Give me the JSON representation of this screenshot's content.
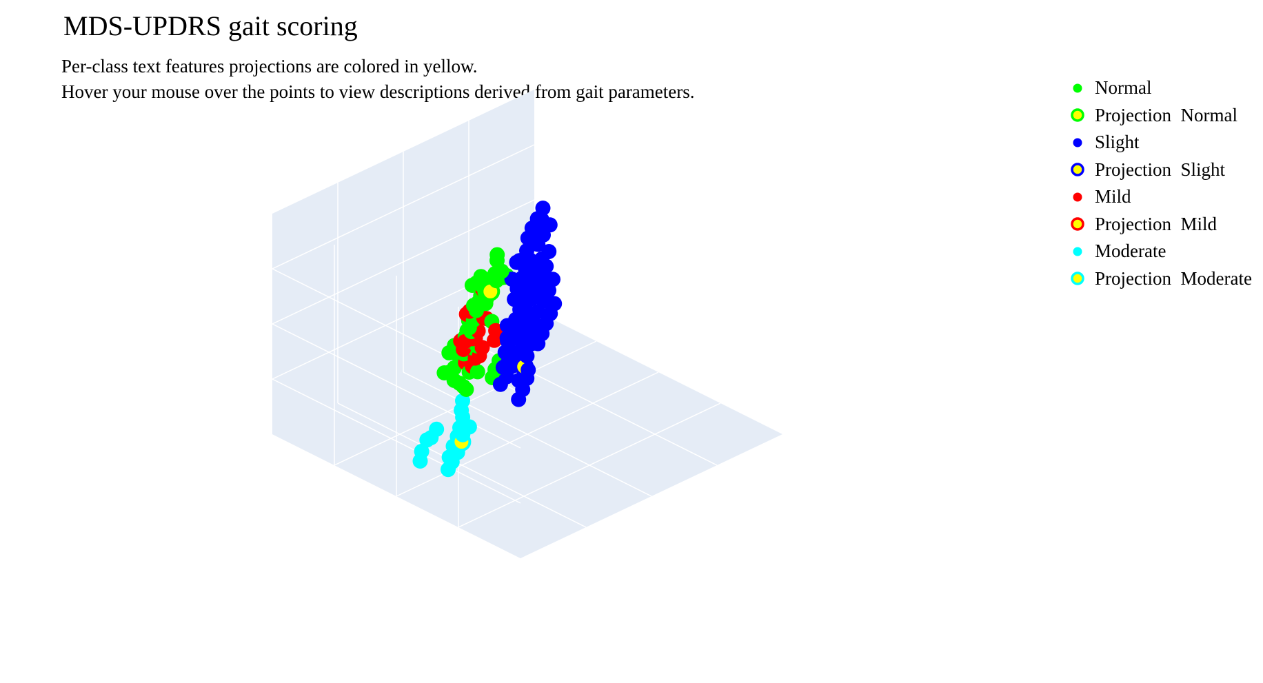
{
  "title": "MDS-UPDRS gait scoring",
  "subtitle": [
    "Per-class text features projections are colored in yellow.",
    "Hover your mouse over the points to view descriptions derived from gait parameters."
  ],
  "colors": {
    "normal": "#00ff00",
    "slight": "#0000ff",
    "mild": "#ff0000",
    "moderate": "#00ffff",
    "projection_fill": "#ffff00",
    "scene_bg": "#e5ecf6",
    "grid": "#ffffff"
  },
  "legend": [
    {
      "label": "Normal",
      "color": "#00ff00",
      "projection": false
    },
    {
      "label": "Projection  Normal",
      "color": "#00ff00",
      "projection": true
    },
    {
      "label": "Slight",
      "color": "#0000ff",
      "projection": false
    },
    {
      "label": "Projection  Slight",
      "color": "#0000ff",
      "projection": true
    },
    {
      "label": "Mild",
      "color": "#ff0000",
      "projection": false
    },
    {
      "label": "Projection  Mild",
      "color": "#ff0000",
      "projection": true
    },
    {
      "label": "Moderate",
      "color": "#00ffff",
      "projection": false
    },
    {
      "label": "Projection  Moderate",
      "color": "#00ffff",
      "projection": true
    }
  ],
  "chart_data": {
    "type": "scatter",
    "dimension": "3d",
    "title": "MDS-UPDRS gait scoring",
    "axis_ranges": {
      "x": [
        -10,
        10
      ],
      "y": [
        -10,
        10
      ],
      "z": [
        -10,
        10
      ]
    },
    "grid": true,
    "legend_position": "right",
    "series": [
      {
        "name": "Normal",
        "color": "#00ff00",
        "marker": "circle",
        "points": [
          [
            2.0,
            5.4,
            0.5
          ],
          [
            2.6,
            5.2,
            1.0
          ],
          [
            3.1,
            5.7,
            0.3
          ],
          [
            3.9,
            5.9,
            0.0
          ],
          [
            4.5,
            6.2,
            -0.3
          ],
          [
            1.2,
            5.0,
            0.8
          ],
          [
            1.8,
            4.6,
            0.6
          ],
          [
            2.5,
            4.2,
            0.9
          ],
          [
            2.9,
            3.8,
            0.7
          ],
          [
            3.5,
            3.9,
            0.2
          ],
          [
            4.2,
            4.1,
            -0.1
          ],
          [
            2.2,
            3.5,
            1.1
          ],
          [
            2.8,
            3.2,
            0.4
          ],
          [
            3.3,
            3.5,
            0.5
          ],
          [
            3.8,
            3.3,
            0.1
          ],
          [
            4.5,
            3.1,
            -0.4
          ],
          [
            5.0,
            2.8,
            -0.6
          ],
          [
            5.6,
            2.5,
            -0.9
          ],
          [
            6.2,
            2.3,
            -1.1
          ],
          [
            6.8,
            2.6,
            -1.3
          ],
          [
            7.5,
            2.5,
            -1.6
          ],
          [
            5.3,
            1.8,
            -0.7
          ],
          [
            4.8,
            2.2,
            -0.2
          ],
          [
            4.2,
            2.5,
            0.3
          ],
          [
            3.6,
            2.7,
            0.6
          ],
          [
            3.0,
            2.4,
            1.0
          ],
          [
            2.4,
            2.1,
            1.4
          ],
          [
            1.9,
            2.6,
            1.3
          ],
          [
            2.6,
            1.6,
            1.2
          ],
          [
            3.3,
            1.9,
            0.8
          ],
          [
            4.1,
            1.5,
            0.2
          ],
          [
            4.9,
            1.2,
            -0.3
          ],
          [
            5.7,
            1.0,
            -0.9
          ],
          [
            6.4,
            1.4,
            -1.2
          ],
          [
            7.0,
            0.8,
            -1.5
          ],
          [
            7.3,
            0.0,
            -1.8
          ],
          [
            6.8,
            -0.6,
            -1.7
          ],
          [
            6.3,
            -1.3,
            -1.5
          ],
          [
            5.8,
            -2.0,
            -1.2
          ],
          [
            3.6,
            -0.5,
            0.6
          ],
          [
            3.0,
            -0.8,
            0.9
          ],
          [
            4.4,
            -0.2,
            0.2
          ],
          [
            0.3,
            3.2,
            2.0
          ],
          [
            -0.1,
            2.9,
            2.2
          ],
          [
            -0.5,
            2.6,
            2.4
          ],
          [
            -0.9,
            2.4,
            2.6
          ],
          [
            1.4,
            -3.0,
            0.8
          ],
          [
            1.9,
            -3.4,
            0.6
          ],
          [
            2.3,
            -3.8,
            0.4
          ],
          [
            9.0,
            2.2,
            -2.8
          ],
          [
            8.2,
            1.5,
            -2.3
          ],
          [
            0.8,
            5.3,
            1.6
          ],
          [
            0.6,
            5.6,
            1.8
          ],
          [
            3.8,
            -2.2,
            0.0
          ],
          [
            1.2,
            0.0,
            1.6
          ],
          [
            5.2,
            -1.0,
            -0.8
          ]
        ]
      },
      {
        "name": "Projection  Normal",
        "color": "#00ff00",
        "marker": "circle-open",
        "points": [
          [
            1.5,
            3.0,
            1.4
          ]
        ]
      },
      {
        "name": "Slight",
        "color": "#0000ff",
        "marker": "circle",
        "points": [
          [
            -4.5,
            6.0,
            3.5
          ],
          [
            -3.8,
            5.6,
            3.2
          ],
          [
            -3.2,
            5.2,
            3.0
          ],
          [
            -2.6,
            4.8,
            2.7
          ],
          [
            -4.0,
            4.5,
            3.4
          ],
          [
            -3.3,
            4.1,
            3.1
          ],
          [
            -2.6,
            3.6,
            2.8
          ],
          [
            -1.9,
            3.2,
            2.5
          ],
          [
            -5.8,
            3.3,
            4.3
          ],
          [
            -5.0,
            3.0,
            4.0
          ],
          [
            -4.4,
            2.6,
            3.8
          ],
          [
            -0.6,
            4.4,
            1.5
          ],
          [
            -1.2,
            4.0,
            1.9
          ],
          [
            -3.4,
            2.0,
            3.4
          ],
          [
            -2.8,
            1.6,
            3.1
          ],
          [
            -2.2,
            1.3,
            2.8
          ],
          [
            -1.5,
            1.0,
            2.4
          ],
          [
            -0.9,
            0.6,
            2.0
          ],
          [
            -4.8,
            1.0,
            3.9
          ],
          [
            -4.1,
            0.6,
            3.6
          ],
          [
            -3.5,
            0.2,
            3.3
          ],
          [
            -2.9,
            -0.2,
            3.0
          ],
          [
            -2.3,
            -0.6,
            2.7
          ],
          [
            -1.7,
            -1.0,
            2.4
          ],
          [
            -1.1,
            -1.4,
            2.1
          ],
          [
            -0.5,
            -1.8,
            1.8
          ],
          [
            0.2,
            -2.2,
            1.4
          ],
          [
            -5.6,
            -0.4,
            4.4
          ],
          [
            -5.0,
            -0.9,
            4.1
          ],
          [
            -4.3,
            -1.3,
            3.8
          ],
          [
            -3.6,
            -1.7,
            3.5
          ],
          [
            -2.9,
            -2.1,
            3.2
          ],
          [
            -2.2,
            -2.5,
            2.9
          ],
          [
            -1.5,
            -2.9,
            2.6
          ],
          [
            -0.8,
            -3.3,
            2.3
          ],
          [
            -0.1,
            -3.7,
            1.9
          ],
          [
            -6.4,
            -2.2,
            4.7
          ],
          [
            -5.8,
            -2.7,
            4.4
          ],
          [
            -5.2,
            -3.2,
            4.2
          ],
          [
            -4.5,
            -3.6,
            3.9
          ],
          [
            -3.9,
            -4.1,
            3.6
          ],
          [
            -3.2,
            -4.5,
            3.3
          ],
          [
            -2.5,
            -5.0,
            3.0
          ],
          [
            -1.8,
            -5.4,
            2.7
          ],
          [
            -1.1,
            -5.8,
            2.4
          ],
          [
            -0.4,
            -6.2,
            2.1
          ],
          [
            -4.2,
            -5.2,
            3.8
          ],
          [
            -3.6,
            -5.8,
            3.5
          ],
          [
            -3.0,
            -6.4,
            3.2
          ],
          [
            -2.4,
            -7.0,
            2.9
          ],
          [
            -1.8,
            -7.6,
            2.6
          ],
          [
            -2.8,
            -8.2,
            3.0
          ],
          [
            -2.2,
            -8.7,
            2.7
          ],
          [
            -1.6,
            -9.1,
            2.4
          ],
          [
            -6.8,
            -4.8,
            5.0
          ],
          [
            -6.2,
            -5.2,
            4.7
          ],
          [
            -5.6,
            -5.6,
            4.4
          ],
          [
            -5.0,
            -6.0,
            4.1
          ],
          [
            -4.4,
            -6.4,
            3.8
          ],
          [
            -6.0,
            0.6,
            4.6
          ],
          [
            0.4,
            -0.6,
            1.2
          ],
          [
            0.6,
            -1.5,
            1.0
          ],
          [
            -0.3,
            -4.8,
            1.9
          ],
          [
            -1.0,
            2.2,
            2.3
          ],
          [
            -3.8,
            3.2,
            3.5
          ],
          [
            -4.6,
            4.8,
            3.7
          ],
          [
            -2.0,
            -3.8,
            2.6
          ],
          [
            -1.2,
            -4.6,
            2.3
          ],
          [
            -0.6,
            -5.2,
            2.0
          ],
          [
            -5.3,
            -1.9,
            4.3
          ],
          [
            -4.8,
            -2.4,
            4.0
          ],
          [
            0.9,
            -4.0,
            1.0
          ],
          [
            1.3,
            -5.2,
            0.8
          ],
          [
            -3.0,
            -7.6,
            3.1
          ],
          [
            -3.5,
            -3.0,
            3.6
          ],
          [
            -2.6,
            -3.4,
            3.2
          ]
        ]
      },
      {
        "name": "Projection  Slight",
        "color": "#0000ff",
        "marker": "circle-open",
        "points": [
          [
            -2.4,
            -6.8,
            2.8
          ]
        ]
      },
      {
        "name": "Mild",
        "color": "#ff0000",
        "marker": "circle",
        "points": [
          [
            2.8,
            4.6,
            0.8
          ],
          [
            2.4,
            4.0,
            1.2
          ],
          [
            2.0,
            3.4,
            1.6
          ],
          [
            5.0,
            4.3,
            -0.6
          ],
          [
            4.6,
            3.5,
            -0.3
          ],
          [
            6.1,
            2.6,
            -1.4
          ],
          [
            6.5,
            2.3,
            -1.7
          ],
          [
            3.0,
            0.6,
            0.8
          ],
          [
            3.5,
            0.4,
            0.5
          ],
          [
            4.0,
            0.8,
            0.2
          ],
          [
            5.2,
            -0.3,
            -0.5
          ],
          [
            2.5,
            -1.3,
            1.0
          ],
          [
            3.0,
            -1.6,
            0.7
          ],
          [
            3.6,
            -1.3,
            0.4
          ],
          [
            4.1,
            -1.6,
            0.1
          ],
          [
            0.9,
            -1.0,
            1.6
          ],
          [
            1.2,
            -1.6,
            1.4
          ],
          [
            5.6,
            4.6,
            -1.0
          ],
          [
            1.7,
            0.6,
            1.5
          ],
          [
            2.1,
            1.0,
            1.3
          ],
          [
            6.8,
            3.3,
            -1.8
          ]
        ]
      },
      {
        "name": "Projection  Mild",
        "color": "#ff0000",
        "marker": "circle-open",
        "points": [
          [
            1.8,
            3.3,
            1.5
          ]
        ]
      },
      {
        "name": "Moderate",
        "color": "#00ffff",
        "marker": "circle",
        "points": [
          [
            5.8,
            -3.2,
            -0.9
          ],
          [
            5.9,
            -4.0,
            -0.9
          ],
          [
            5.7,
            -4.8,
            -0.8
          ],
          [
            5.5,
            -5.6,
            -0.7
          ],
          [
            4.9,
            -6.3,
            -0.5
          ],
          [
            5.6,
            -6.5,
            -0.7
          ],
          [
            6.2,
            -6.2,
            -0.9
          ],
          [
            6.7,
            -6.7,
            -1.1
          ],
          [
            5.7,
            -7.2,
            -0.6
          ],
          [
            6.3,
            -7.4,
            -0.8
          ],
          [
            6.9,
            -7.6,
            -1.1
          ],
          [
            5.9,
            -8.0,
            -0.6
          ],
          [
            6.6,
            -8.3,
            -0.9
          ],
          [
            7.2,
            -7.3,
            -1.3
          ],
          [
            7.0,
            -8.7,
            -1.0
          ],
          [
            9.4,
            -2.8,
            -2.6
          ],
          [
            10.1,
            -3.0,
            -2.9
          ],
          [
            10.7,
            -2.7,
            -3.2
          ],
          [
            11.2,
            -3.4,
            -3.3
          ],
          [
            11.5,
            -4.0,
            -3.5
          ],
          [
            6.2,
            -5.3,
            -1.1
          ]
        ]
      },
      {
        "name": "Projection  Moderate",
        "color": "#00ffff",
        "marker": "circle-open",
        "points": [
          [
            5.6,
            -7.2,
            -0.6
          ]
        ]
      }
    ]
  }
}
